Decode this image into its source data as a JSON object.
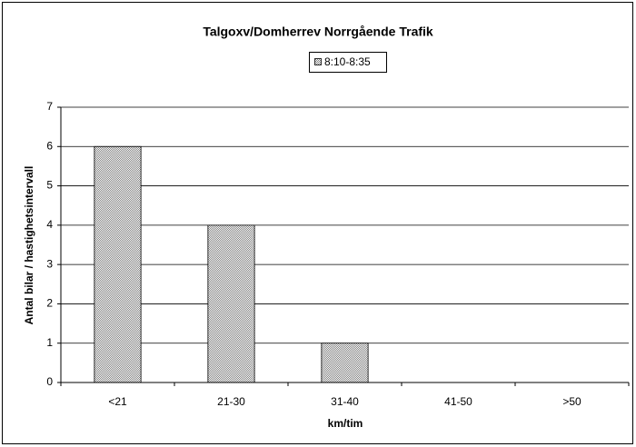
{
  "chart_data": {
    "type": "bar",
    "title": "Talgoxv/Domherrev Norrgående Trafik",
    "xlabel": "km/tim",
    "ylabel": "Antal bilar / hastighetsintervall",
    "categories": [
      "<21",
      "21-30",
      "31-40",
      "41-50",
      ">50"
    ],
    "series": [
      {
        "name": "8:10-8:35",
        "color": "#808080",
        "values": [
          6,
          4,
          1,
          0,
          0
        ]
      }
    ],
    "ylim": [
      0,
      7
    ],
    "yticks": [
      0,
      1,
      2,
      3,
      4,
      5,
      6,
      7
    ],
    "grid": true
  }
}
